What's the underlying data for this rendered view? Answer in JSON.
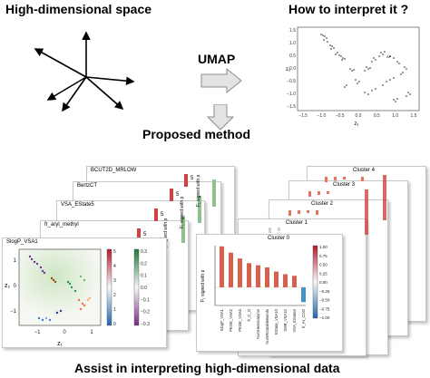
{
  "titles": {
    "top_left": "High-dimensional space",
    "top_right": "How to interpret it ?",
    "middle": "Proposed method",
    "bottom": "Assist in interpreting high-dimensional data"
  },
  "arrow_label": "UMAP",
  "umap_plot": {
    "ylabel": "z₂",
    "xlabel": "z₁",
    "x_ticks": [
      "−1.5",
      "−1.0",
      "−0.5",
      "0.0",
      "0.5",
      "1.0",
      "1.5"
    ],
    "y_ticks": [
      "1.5",
      "1.0",
      "0.5",
      "0.0",
      "−0.5",
      "−1.0",
      "−1.5"
    ]
  },
  "left_stack": {
    "cards": [
      "BCUT2D_MRLOW",
      "BertzCT",
      "VSA_EState5",
      "fr_aryl_methyl",
      "SlogP_VSA1"
    ],
    "colorbar_top": "5",
    "side_ylabel": "F₁ signed with p",
    "front": {
      "colorbar_ticks": [
        "5",
        "4",
        "3",
        "2",
        "1",
        "0"
      ],
      "axis2_ticks": [
        "0.3",
        "0.2",
        "0.1",
        "0.0",
        "−0.1",
        "−0.2",
        "−0.3"
      ],
      "x_ticks": [
        "−1",
        "0",
        "1"
      ],
      "y_ticks": [
        "1",
        "0",
        "−1"
      ],
      "xlabel": "z₁",
      "ylabel": "z₂"
    }
  },
  "right_stack": {
    "cards": [
      "Cluster 4",
      "Cluster 3",
      "Cluster 2",
      "Cluster 1",
      "Cluster 0"
    ],
    "ylabel": "F₁ signed with p",
    "colorbar_ticks": [
      "1.00",
      "0.75",
      "0.50",
      "0.25",
      "0.00",
      "−0.25",
      "−0.50",
      "−0.75",
      "−1.00"
    ],
    "front_bars": [
      "SlogP_VSA1",
      "PEOE_VSA2",
      "PEOE_VSA5",
      "fr_C_O",
      "NumHeteroatoms",
      "NumRotatableBonds",
      "EState_VSA10",
      "SMR_VSA10",
      "VSA_EState4",
      "fr_Ar_COO"
    ]
  }
}
